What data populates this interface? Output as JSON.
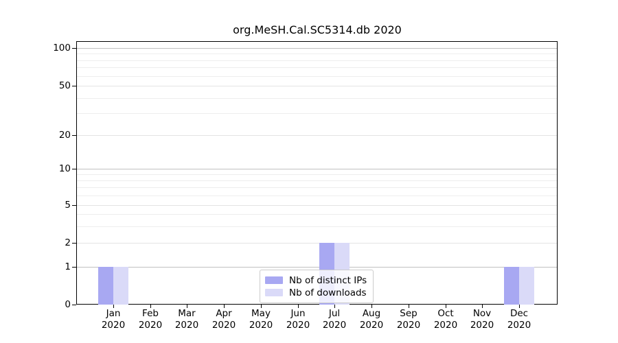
{
  "chart_data": {
    "type": "bar",
    "title": "org.MeSH.Cal.SC5314.db 2020",
    "categories": [
      "Jan",
      "Feb",
      "Mar",
      "Apr",
      "May",
      "Jun",
      "Jul",
      "Aug",
      "Sep",
      "Oct",
      "Nov",
      "Dec"
    ],
    "category_year": "2020",
    "series": [
      {
        "name": "Nb of distinct IPs",
        "color": "#a8a8f2",
        "values": [
          1,
          0,
          0,
          0,
          0,
          0,
          2,
          0,
          0,
          0,
          0,
          1
        ]
      },
      {
        "name": "Nb of downloads",
        "color": "#dadaf8",
        "values": [
          1,
          0,
          0,
          0,
          0,
          0,
          2,
          0,
          0,
          0,
          0,
          1
        ]
      }
    ],
    "xlabel": "",
    "ylabel": "",
    "yscale": "symlog",
    "ylim": [
      0,
      115
    ],
    "y_ticks": [
      0,
      1,
      2,
      5,
      10,
      20,
      50,
      100
    ],
    "y_major_gridlines": [
      1,
      10,
      100
    ],
    "y_minor_gridlines": [
      3,
      4,
      6,
      7,
      8,
      9,
      30,
      40,
      60,
      70,
      80,
      90
    ],
    "grid": true,
    "legend_position": "lower center",
    "axis_color": "#000000"
  }
}
